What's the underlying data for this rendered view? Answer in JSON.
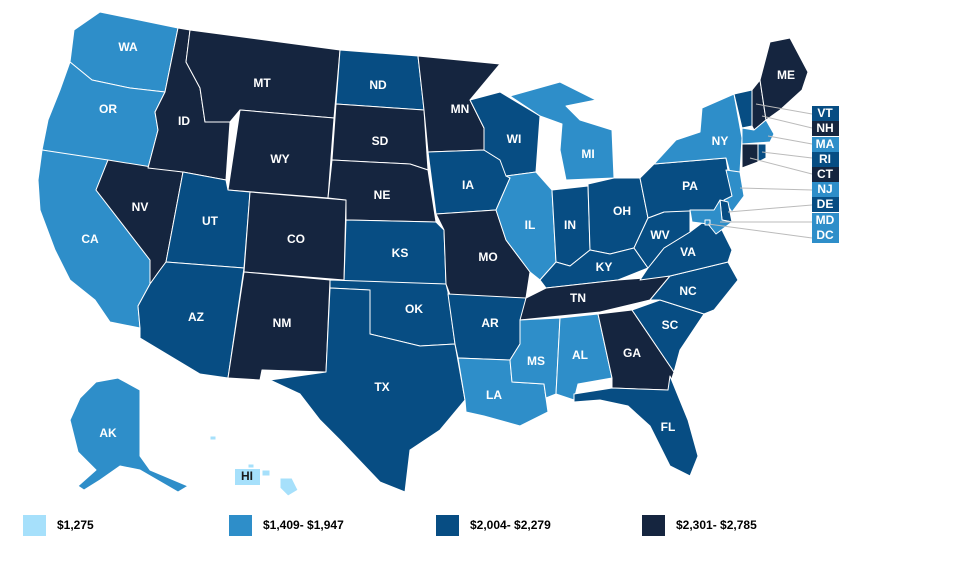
{
  "colors": {
    "tier1": "#a6e0fb",
    "tier2": "#2e8ec9",
    "tier3": "#074d83",
    "tier4": "#15253f",
    "border": "#ffffff"
  },
  "legend": [
    {
      "tier": "tier1",
      "label": "$1,275"
    },
    {
      "tier": "tier2",
      "label": "$1,409- $1,947"
    },
    {
      "tier": "tier3",
      "label": "$2,004- $2,279"
    },
    {
      "tier": "tier4",
      "label": "$2,301- $2,785"
    }
  ],
  "states": {
    "WA": "tier2",
    "OR": "tier2",
    "CA": "tier2",
    "ID": "tier4",
    "NV": "tier4",
    "MT": "tier4",
    "WY": "tier4",
    "UT": "tier3",
    "AZ": "tier3",
    "CO": "tier4",
    "NM": "tier4",
    "ND": "tier3",
    "SD": "tier4",
    "NE": "tier4",
    "KS": "tier3",
    "OK": "tier3",
    "TX": "tier3",
    "MN": "tier4",
    "IA": "tier3",
    "MO": "tier4",
    "AR": "tier3",
    "LA": "tier2",
    "WI": "tier3",
    "IL": "tier2",
    "MI": "tier2",
    "IN": "tier3",
    "OH": "tier3",
    "KY": "tier3",
    "TN": "tier4",
    "MS": "tier2",
    "AL": "tier2",
    "GA": "tier4",
    "FL": "tier3",
    "SC": "tier3",
    "NC": "tier3",
    "VA": "tier3",
    "WV": "tier3",
    "PA": "tier3",
    "NY": "tier2",
    "VT": "tier3",
    "NH": "tier4",
    "ME": "tier4",
    "MA": "tier2",
    "RI": "tier3",
    "CT": "tier4",
    "NJ": "tier2",
    "DE": "tier3",
    "MD": "tier2",
    "DC": "tier2",
    "AK": "tier2",
    "HI": "tier1"
  },
  "labels": {
    "WA": "WA",
    "OR": "OR",
    "CA": "CA",
    "ID": "ID",
    "NV": "NV",
    "MT": "MT",
    "WY": "WY",
    "UT": "UT",
    "AZ": "AZ",
    "CO": "CO",
    "NM": "NM",
    "ND": "ND",
    "SD": "SD",
    "NE": "NE",
    "KS": "KS",
    "OK": "OK",
    "TX": "TX",
    "MN": "MN",
    "IA": "IA",
    "MO": "MO",
    "AR": "AR",
    "LA": "LA",
    "WI": "WI",
    "IL": "IL",
    "MI": "MI",
    "IN": "IN",
    "OH": "OH",
    "KY": "KY",
    "TN": "TN",
    "MS": "MS",
    "AL": "AL",
    "GA": "GA",
    "FL": "FL",
    "SC": "SC",
    "NC": "NC",
    "VA": "VA",
    "WV": "WV",
    "PA": "PA",
    "NY": "NY",
    "ME": "ME",
    "AK": "AK",
    "HI": "HI",
    "VT": "VT",
    "NH": "NH",
    "MA": "MA",
    "RI": "RI",
    "CT": "CT",
    "NJ": "NJ",
    "DE": "DE",
    "MD": "MD",
    "DC": "DC"
  }
}
